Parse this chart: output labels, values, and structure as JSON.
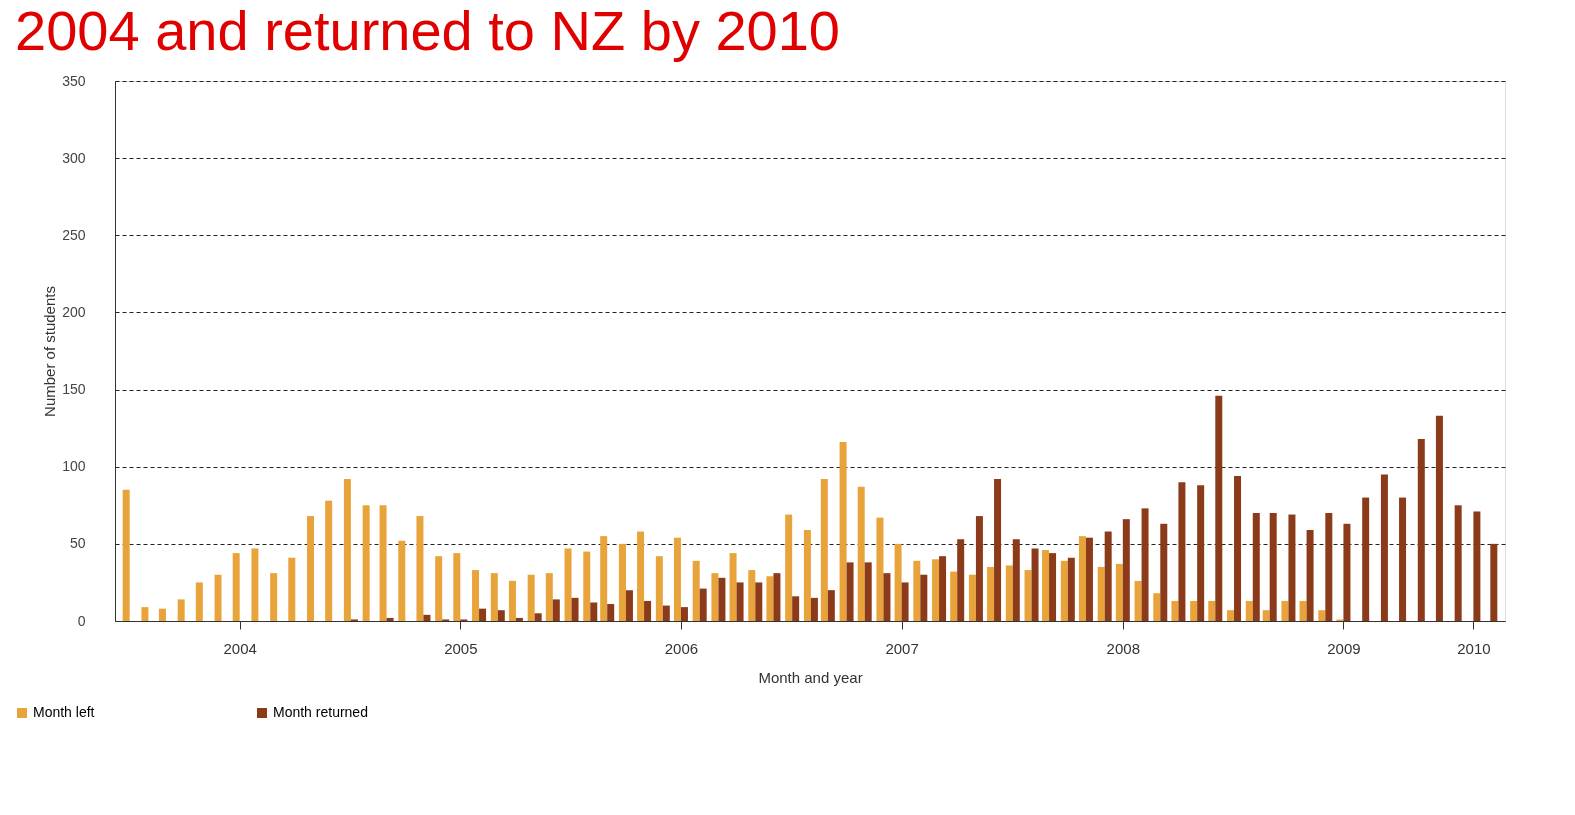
{
  "chart_data": {
    "type": "bar",
    "title": "2004 and returned to NZ by 2010",
    "xlabel": "Month and year",
    "ylabel": "Number of students",
    "x": [
      "2004-01",
      "2004-02",
      "2004-03",
      "2004-04",
      "2004-05",
      "2004-06",
      "2004-07",
      "2004-08",
      "2004-09",
      "2004-10",
      "2004-11",
      "2004-12",
      "2005-01",
      "2005-02",
      "2005-03",
      "2005-04",
      "2005-05",
      "2005-06",
      "2005-07",
      "2005-08",
      "2005-09",
      "2005-10",
      "2005-11",
      "2005-12",
      "2006-01",
      "2006-02",
      "2006-03",
      "2006-04",
      "2006-05",
      "2006-06",
      "2006-07",
      "2006-08",
      "2006-09",
      "2006-10",
      "2006-11",
      "2006-12",
      "2007-01",
      "2007-02",
      "2007-03",
      "2007-04",
      "2007-05",
      "2007-06",
      "2007-07",
      "2007-08",
      "2007-09",
      "2007-10",
      "2007-11",
      "2007-12",
      "2008-01",
      "2008-02",
      "2008-03",
      "2008-04",
      "2008-05",
      "2008-06",
      "2008-07",
      "2008-08",
      "2008-09",
      "2008-10",
      "2008-11",
      "2008-12",
      "2009-01",
      "2009-02",
      "2009-03",
      "2009-04",
      "2009-05",
      "2009-06",
      "2009-07",
      "2009-08",
      "2009-09",
      "2009-10",
      "2009-11",
      "2009-12",
      "2010-01",
      "2010-02",
      "2010-03"
    ],
    "series": [
      {
        "name": "Month left",
        "color": "#e8a33a",
        "values": [
          85,
          9,
          8,
          14,
          25,
          30,
          44,
          47,
          31,
          41,
          68,
          78,
          92,
          75,
          75,
          52,
          68,
          42,
          44,
          33,
          31,
          26,
          30,
          31,
          47,
          45,
          55,
          50,
          58,
          42,
          54,
          39,
          31,
          44,
          33,
          29,
          69,
          59,
          92,
          116,
          87,
          67,
          50,
          39,
          40,
          32,
          30,
          35,
          36,
          33,
          46,
          39,
          55,
          35,
          37,
          26,
          18,
          13,
          13,
          13,
          7,
          13,
          7,
          13,
          13,
          7,
          1,
          0,
          0,
          0,
          0,
          0,
          0,
          0,
          0
        ]
      },
      {
        "name": "Month returned",
        "color": "#8b3a1a",
        "values": [
          0,
          0,
          0,
          0,
          0,
          0,
          0,
          0,
          0,
          0,
          0,
          0,
          1,
          0,
          2,
          0,
          4,
          1,
          1,
          8,
          7,
          2,
          5,
          14,
          15,
          12,
          11,
          20,
          13,
          10,
          9,
          21,
          28,
          25,
          25,
          31,
          16,
          15,
          20,
          38,
          38,
          31,
          25,
          30,
          42,
          53,
          68,
          92,
          53,
          47,
          44,
          41,
          54,
          58,
          66,
          73,
          63,
          90,
          88,
          146,
          94,
          70,
          70,
          69,
          59,
          70,
          63,
          80,
          95,
          80,
          118,
          133,
          75,
          71,
          50
        ]
      }
    ],
    "xlim": [
      "2003-12-16",
      "2010-03-17"
    ],
    "xticks": [
      {
        "value": "2004-07-01",
        "label": "2004"
      },
      {
        "value": "2005-07-01",
        "label": "2005"
      },
      {
        "value": "2006-07-01",
        "label": "2006"
      },
      {
        "value": "2007-07-01",
        "label": "2007"
      },
      {
        "value": "2008-07-01",
        "label": "2008"
      },
      {
        "value": "2009-07-01",
        "label": "2009"
      },
      {
        "value": "2010-02-01",
        "label": "2010"
      }
    ],
    "ylim": [
      0,
      350
    ],
    "yticks": [
      0,
      50,
      100,
      150,
      200,
      250,
      300,
      350
    ],
    "grid": "y",
    "legend": "bottom left"
  }
}
